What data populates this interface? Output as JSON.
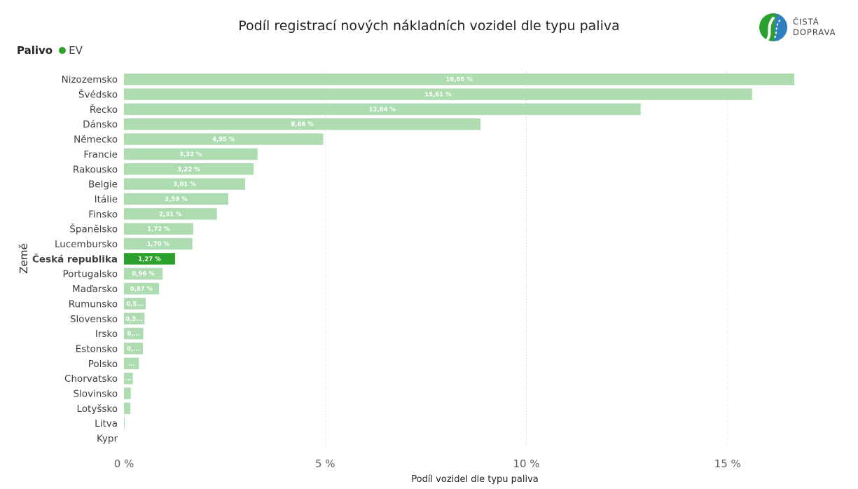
{
  "title": "Podíl registrací nových nákladních vozidel dle typu paliva",
  "legend": {
    "title": "Palivo",
    "items": [
      {
        "label": "EV",
        "color": "#2ca02c"
      }
    ]
  },
  "logo": {
    "line1": "ČISTÁ",
    "line2": "DOPRAVA"
  },
  "chart_data": {
    "type": "bar",
    "orientation": "horizontal",
    "xlabel": "Podíl vozidel dle typu paliva",
    "ylabel": "Země",
    "xlim": [
      0,
      17
    ],
    "xticks": [
      {
        "value": 0,
        "label": "0 %"
      },
      {
        "value": 5,
        "label": "5 %"
      },
      {
        "value": 10,
        "label": "10 %"
      },
      {
        "value": 15,
        "label": "15 %"
      }
    ],
    "grid": "vertical",
    "highlight_category": "Česká republika",
    "colors": {
      "bar": "#acdcb0",
      "highlight": "#2ca02c",
      "label_text": "#ffffff",
      "axis_text": "#605e5c",
      "grid": "#c8c6c4"
    },
    "categories": [
      "Nizozemsko",
      "Švédsko",
      "Řecko",
      "Dánsko",
      "Německo",
      "Francie",
      "Rakousko",
      "Belgie",
      "Itálie",
      "Finsko",
      "Španělsko",
      "Lucembursko",
      "Česká republika",
      "Portugalsko",
      "Maďarsko",
      "Rumunsko",
      "Slovensko",
      "Irsko",
      "Estonsko",
      "Polsko",
      "Chorvatsko",
      "Slovinsko",
      "Lotyšsko",
      "Litva",
      "Kypr"
    ],
    "series": [
      {
        "name": "EV",
        "values": [
          16.66,
          15.61,
          12.84,
          8.86,
          4.95,
          3.32,
          3.22,
          3.01,
          2.59,
          2.31,
          1.72,
          1.7,
          1.27,
          0.96,
          0.87,
          0.54,
          0.51,
          0.48,
          0.47,
          0.37,
          0.22,
          0.17,
          0.16,
          0.02,
          0.0
        ],
        "labels": [
          "16,66 %",
          "15,61 %",
          "12,84 %",
          "8,86 %",
          "4,95 %",
          "3,32 %",
          "3,22 %",
          "3,01 %",
          "2,59 %",
          "2,31 %",
          "1,72 %",
          "1,70 %",
          "1,27 %",
          "0,96 %",
          "0,87 %",
          "0,5...",
          "0,5...",
          "0,...",
          "0,...",
          "...",
          "...",
          "",
          "",
          "",
          ""
        ]
      }
    ]
  }
}
